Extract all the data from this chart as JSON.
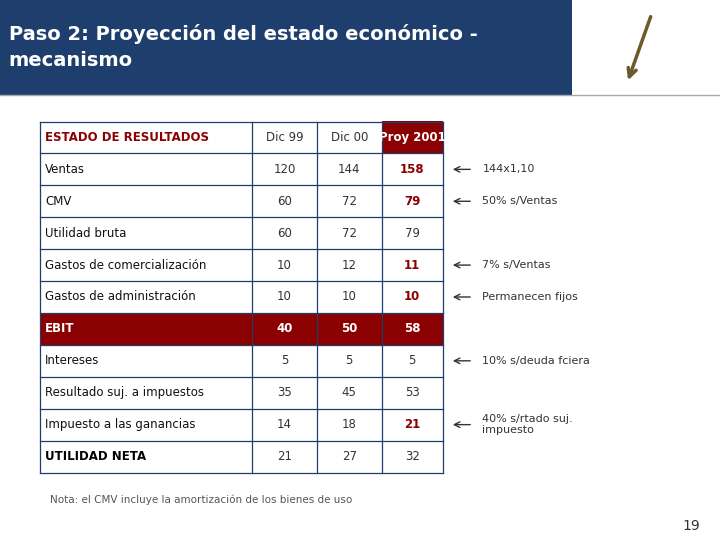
{
  "title_line1": "Paso 2: Proyección del estado económico -",
  "title_line2": "mecanismo",
  "title_bg": "#1e3f6e",
  "title_color": "#ffffff",
  "title_fontsize": 14,
  "bg_color": "#ffffff",
  "rows": [
    {
      "label": "ESTADO DE RESULTADOS",
      "dic99": "Dic 99",
      "dic00": "Dic 00",
      "proy": "Proy 2001",
      "is_header": true,
      "is_ebit": false,
      "is_bold": false,
      "proy_bold": false,
      "proy_red": false
    },
    {
      "label": "Ventas",
      "dic99": "120",
      "dic00": "144",
      "proy": "158",
      "is_header": false,
      "is_ebit": false,
      "is_bold": false,
      "proy_bold": true,
      "proy_red": true
    },
    {
      "label": "CMV",
      "dic99": "60",
      "dic00": "72",
      "proy": "79",
      "is_header": false,
      "is_ebit": false,
      "is_bold": false,
      "proy_bold": true,
      "proy_red": true
    },
    {
      "label": "Utilidad bruta",
      "dic99": "60",
      "dic00": "72",
      "proy": "79",
      "is_header": false,
      "is_ebit": false,
      "is_bold": false,
      "proy_bold": false,
      "proy_red": false
    },
    {
      "label": "Gastos de comercialización",
      "dic99": "10",
      "dic00": "12",
      "proy": "11",
      "is_header": false,
      "is_ebit": false,
      "is_bold": false,
      "proy_bold": true,
      "proy_red": true
    },
    {
      "label": "Gastos de administración",
      "dic99": "10",
      "dic00": "10",
      "proy": "10",
      "is_header": false,
      "is_ebit": false,
      "is_bold": false,
      "proy_bold": true,
      "proy_red": true
    },
    {
      "label": "EBIT",
      "dic99": "40",
      "dic00": "50",
      "proy": "58",
      "is_header": false,
      "is_ebit": true,
      "is_bold": true,
      "proy_bold": false,
      "proy_red": false
    },
    {
      "label": "Intereses",
      "dic99": "5",
      "dic00": "5",
      "proy": "5",
      "is_header": false,
      "is_ebit": false,
      "is_bold": false,
      "proy_bold": false,
      "proy_red": false
    },
    {
      "label": "Resultado suj. a impuestos",
      "dic99": "35",
      "dic00": "45",
      "proy": "53",
      "is_header": false,
      "is_ebit": false,
      "is_bold": false,
      "proy_bold": false,
      "proy_red": false
    },
    {
      "label": "Impuesto a las ganancias",
      "dic99": "14",
      "dic00": "18",
      "proy": "21",
      "is_header": false,
      "is_ebit": false,
      "is_bold": false,
      "proy_bold": true,
      "proy_red": true
    },
    {
      "label": "UTILIDAD NETA",
      "dic99": "21",
      "dic00": "27",
      "proy": "32",
      "is_header": false,
      "is_ebit": false,
      "is_bold": true,
      "proy_bold": false,
      "proy_red": false
    }
  ],
  "annotations": {
    "1": "144x1,10",
    "2": "50% s/Ventas",
    "4": "7% s/Ventas",
    "5": "Permanecen fijos",
    "7": "10% s/deuda fciera",
    "9": "40% s/rtado suj.\nimpuesto"
  },
  "dark_red": "#8b0000",
  "dark_blue": "#1e3f6e",
  "ebit_bg": "#8b0000",
  "table_border": "#1e3f6e",
  "note": "Nota: el CMV incluye la amortización de los bienes de uso",
  "page_number": "19"
}
